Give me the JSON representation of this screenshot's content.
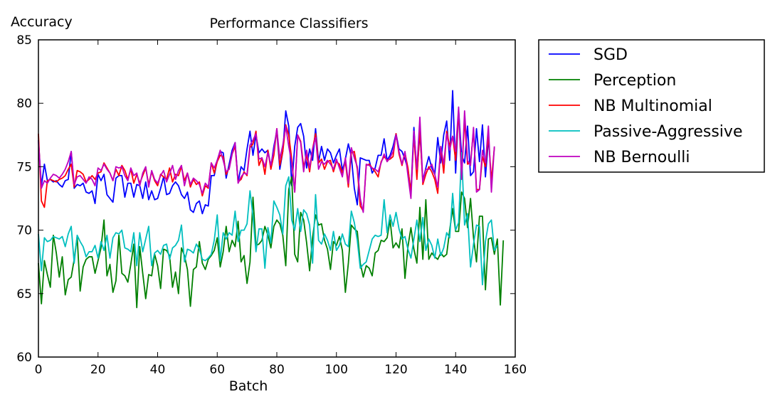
{
  "chart_data": {
    "type": "line",
    "title": "Performance Classifiers",
    "xlabel": "Batch",
    "ylabel": "Accuracy",
    "xlim": [
      0,
      160
    ],
    "ylim": [
      60,
      85
    ],
    "xticks": [
      0,
      20,
      40,
      60,
      80,
      100,
      120,
      140,
      160
    ],
    "yticks": [
      60,
      65,
      70,
      75,
      80,
      85
    ],
    "grid": false,
    "legend_position": "outside-right-top",
    "series": [
      {
        "name": "SGD",
        "color": "#0000ff",
        "values": [
          77.1,
          73.5,
          75.2,
          73.9,
          74.0,
          73.8,
          73.9,
          73.6,
          73.4,
          73.9,
          74.0,
          76.2,
          73.3,
          73.6,
          73.5,
          73.7,
          73.0,
          72.9,
          73.1,
          72.1,
          74.4,
          73.9,
          74.4,
          72.8,
          72.5,
          72.2,
          74.1,
          74.3,
          74.3,
          72.6,
          73.7,
          73.7,
          72.6,
          73.6,
          73.5,
          72.5,
          73.8,
          72.4,
          73.1,
          72.4,
          72.5,
          73.3,
          74.2,
          72.8,
          72.9,
          73.5,
          73.8,
          73.5,
          72.8,
          72.5,
          73.0,
          71.6,
          71.4,
          72.1,
          72.3,
          71.3,
          72.0,
          71.9,
          74.3,
          74.3,
          75.5,
          76.2,
          76.1,
          74.1,
          75.2,
          76.3,
          76.9,
          73.8,
          75.0,
          74.7,
          76.4,
          77.8,
          75.9,
          77.5,
          76.1,
          76.4,
          76.1,
          76.3,
          75.0,
          76.6,
          77.8,
          74.8,
          76.2,
          79.4,
          78.2,
          73.5,
          76.6,
          78.1,
          78.4,
          77.4,
          74.9,
          76.4,
          75.5,
          78.0,
          75.4,
          76.6,
          75.5,
          76.4,
          76.1,
          75.3,
          75.9,
          76.4,
          74.7,
          75.6,
          76.8,
          75.8,
          73.3,
          72.0,
          75.7,
          75.6,
          75.5,
          75.5,
          74.5,
          74.9,
          75.9,
          75.9,
          77.2,
          75.5,
          75.9,
          76.6,
          77.6,
          76.4,
          76.2,
          75.6,
          74.8,
          73.0,
          78.1,
          74.3,
          77.7,
          73.9,
          74.9,
          75.8,
          74.9,
          74.4,
          77.3,
          75.3,
          77.5,
          78.6,
          75.5,
          81.0,
          74.5,
          79.5,
          75.9,
          75.3,
          78.2,
          74.3,
          74.6,
          78.0,
          75.4,
          78.3,
          74.2,
          77.1
        ]
      },
      {
        "name": "Perception",
        "color": "#008000",
        "values": [
          67.4,
          64.2,
          67.6,
          66.5,
          65.5,
          69.6,
          68.2,
          66.3,
          67.9,
          64.9,
          66.1,
          66.3,
          67.7,
          69.5,
          65.2,
          67.1,
          67.7,
          67.9,
          67.9,
          66.6,
          67.6,
          68.6,
          70.8,
          66.4,
          67.3,
          65.1,
          66.0,
          69.6,
          66.6,
          66.4,
          65.9,
          67.3,
          68.9,
          63.9,
          68.7,
          66.6,
          64.6,
          66.5,
          66.4,
          68.1,
          67.2,
          65.4,
          68.5,
          68.4,
          68.0,
          65.5,
          66.7,
          65.0,
          68.6,
          68.0,
          66.9,
          64.0,
          66.9,
          67.1,
          69.1,
          67.4,
          66.9,
          67.7,
          68.0,
          68.4,
          69.4,
          67.1,
          68.3,
          70.3,
          68.3,
          69.2,
          68.7,
          70.7,
          67.5,
          68.0,
          65.8,
          67.5,
          72.6,
          68.8,
          68.9,
          69.2,
          70.3,
          69.6,
          68.6,
          70.3,
          70.8,
          70.5,
          69.6,
          67.2,
          73.2,
          74.2,
          68.1,
          67.5,
          71.4,
          70.8,
          69.0,
          66.8,
          69.4,
          71.2,
          70.4,
          70.5,
          69.2,
          68.5,
          66.9,
          69.1,
          68.8,
          69.5,
          68.4,
          65.1,
          67.4,
          70.4,
          70.1,
          69.9,
          67.4,
          66.3,
          67.2,
          67.0,
          66.4,
          68.2,
          68.4,
          69.2,
          69.1,
          69.4,
          70.8,
          68.6,
          69.0,
          68.6,
          70.1,
          66.2,
          68.7,
          70.2,
          68.5,
          67.4,
          71.8,
          67.7,
          72.4,
          67.7,
          68.2,
          67.9,
          67.7,
          68.2,
          67.9,
          68.1,
          70.0,
          71.7,
          69.9,
          69.9,
          73.0,
          72.5,
          70.2,
          72.5,
          69.4,
          67.5,
          71.1,
          71.1,
          65.3,
          69.3,
          69.4,
          68.1,
          69.3,
          64.1,
          69.2
        ]
      },
      {
        "name": "NB Multinomial",
        "color": "#ff0000",
        "values": [
          77.6,
          72.3,
          71.8,
          73.9,
          74.0,
          73.9,
          73.8,
          74.0,
          74.1,
          74.3,
          74.8,
          75.2,
          73.4,
          74.7,
          74.6,
          74.4,
          73.8,
          74.0,
          74.3,
          74.0,
          74.5,
          74.6,
          75.3,
          74.9,
          74.5,
          73.9,
          74.8,
          74.3,
          75.1,
          74.7,
          74.0,
          74.8,
          73.7,
          74.4,
          73.7,
          74.3,
          74.9,
          73.6,
          74.6,
          73.9,
          73.5,
          74.4,
          74.2,
          74.0,
          74.9,
          73.8,
          74.4,
          74.3,
          75.0,
          73.9,
          74.5,
          73.4,
          74.0,
          73.6,
          73.8,
          72.7,
          73.5,
          73.3,
          75.3,
          74.5,
          75.4,
          75.9,
          75.8,
          74.4,
          74.9,
          76.0,
          76.6,
          73.8,
          74.0,
          74.6,
          74.3,
          76.5,
          76.8,
          77.8,
          75.1,
          75.7,
          74.4,
          76.3,
          74.8,
          75.9,
          78.0,
          75.1,
          76.2,
          78.3,
          77.5,
          75.6,
          73.0,
          77.5,
          77.0,
          75.0,
          75.9,
          74.6,
          76.4,
          77.6,
          75.3,
          75.6,
          74.8,
          75.4,
          75.5,
          74.6,
          75.4,
          75.2,
          74.5,
          75.4,
          73.4,
          76.1,
          76.2,
          74.8,
          71.9,
          71.5,
          75.1,
          75.2,
          74.9,
          74.6,
          74.2,
          75.4,
          75.8,
          75.5,
          75.6,
          75.8,
          77.6,
          76.0,
          75.1,
          76.1,
          74.9,
          72.9,
          77.5,
          74.0,
          78.0,
          73.6,
          74.4,
          75.0,
          74.6,
          74.0,
          72.9,
          76.6,
          74.5,
          77.8,
          76.6,
          77.4,
          75.5,
          79.4,
          74.2,
          78.7,
          75.2,
          75.3,
          77.9,
          73.2,
          73.2,
          75.8,
          75.0,
          77.5,
          73.9,
          76.5
        ]
      },
      {
        "name": "Passive-Aggressive",
        "color": "#00bfbf",
        "values": [
          69.7,
          66.8,
          69.4,
          69.1,
          69.2,
          69.5,
          69.4,
          69.3,
          69.5,
          68.7,
          69.7,
          70.3,
          67.4,
          69.6,
          69.1,
          68.7,
          67.9,
          68.3,
          68.3,
          68.8,
          67.8,
          69.1,
          68.4,
          69.6,
          67.8,
          69.4,
          69.8,
          69.7,
          70.0,
          68.6,
          68.5,
          68.3,
          69.8,
          67.2,
          69.8,
          68.3,
          69.3,
          70.3,
          67.2,
          68.2,
          68.4,
          68.1,
          68.8,
          68.9,
          67.7,
          68.6,
          68.8,
          69.2,
          70.4,
          67.5,
          68.5,
          68.4,
          68.2,
          68.9,
          68.5,
          67.7,
          67.6,
          67.8,
          68.1,
          69.2,
          71.2,
          67.6,
          69.8,
          69.3,
          69.8,
          69.6,
          71.5,
          69.1,
          70.0,
          70.0,
          70.5,
          73.1,
          71.1,
          68.3,
          70.1,
          70.1,
          67.0,
          70.2,
          69.0,
          72.3,
          71.8,
          71.2,
          69.7,
          73.5,
          74.2,
          70.8,
          70.0,
          71.7,
          69.9,
          71.6,
          71.3,
          70.4,
          67.4,
          72.8,
          69.2,
          68.9,
          69.7,
          69.2,
          68.4,
          69.9,
          68.4,
          68.8,
          69.7,
          68.9,
          68.7,
          71.5,
          70.6,
          69.2,
          67.0,
          67.3,
          67.5,
          68.4,
          69.3,
          69.6,
          69.5,
          69.6,
          72.4,
          69.8,
          71.2,
          70.3,
          71.4,
          70.1,
          69.3,
          69.5,
          68.5,
          67.8,
          69.3,
          70.8,
          69.1,
          71.0,
          68.4,
          69.3,
          68.8,
          67.8,
          69.3,
          68.0,
          68.6,
          69.8,
          69.4,
          72.9,
          70.0,
          70.6,
          76.1,
          70.4,
          71.3,
          67.1,
          68.9,
          70.4,
          70.3,
          65.7,
          69.1,
          70.5,
          70.8,
          68.4,
          68.8
        ]
      },
      {
        "name": "NB Bernoulli",
        "color": "#bf00bf",
        "values": [
          77.0,
          73.3,
          73.9,
          73.7,
          74.1,
          74.4,
          74.3,
          74.1,
          74.4,
          74.8,
          75.4,
          76.2,
          73.6,
          74.2,
          74.3,
          74.0,
          73.7,
          74.2,
          74.0,
          73.5,
          74.9,
          74.7,
          75.2,
          74.8,
          74.5,
          73.9,
          75.0,
          74.9,
          75.0,
          74.3,
          73.9,
          74.9,
          74.3,
          74.5,
          73.5,
          74.5,
          75.0,
          73.4,
          74.7,
          74.0,
          73.7,
          74.3,
          74.7,
          73.8,
          74.4,
          75.1,
          74.0,
          74.7,
          75.1,
          73.5,
          74.5,
          73.6,
          74.1,
          73.9,
          73.6,
          72.9,
          73.7,
          73.4,
          75.3,
          74.9,
          75.5,
          76.3,
          75.5,
          74.6,
          74.8,
          76.0,
          76.9,
          73.7,
          74.2,
          74.5,
          74.4,
          76.7,
          77.1,
          77.6,
          75.6,
          75.7,
          75.0,
          76.1,
          75.1,
          76.3,
          78.0,
          75.6,
          76.7,
          78.2,
          76.6,
          75.3,
          73.0,
          77.5,
          76.9,
          74.6,
          76.3,
          74.9,
          76.4,
          77.3,
          74.8,
          75.4,
          75.2,
          75.5,
          75.2,
          74.8,
          75.6,
          74.9,
          74.2,
          75.7,
          73.7,
          76.5,
          75.7,
          75.0,
          72.5,
          71.4,
          75.2,
          75.1,
          74.9,
          74.8,
          74.6,
          75.3,
          76.0,
          75.4,
          75.7,
          76.2,
          77.5,
          76.2,
          75.2,
          76.2,
          74.3,
          72.5,
          77.8,
          74.8,
          78.9,
          73.8,
          74.8,
          74.8,
          75.2,
          74.4,
          73.4,
          76.6,
          75.2,
          77.6,
          76.3,
          77.4,
          76.2,
          79.7,
          74.0,
          79.4,
          75.5,
          75.1,
          78.1,
          73.0,
          73.2,
          76.3,
          75.3,
          78.2,
          73.0,
          76.6
        ]
      }
    ]
  }
}
